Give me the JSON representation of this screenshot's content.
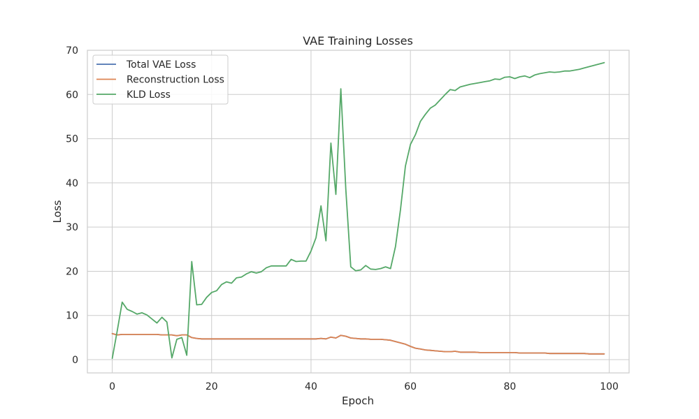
{
  "chart_data": {
    "type": "line",
    "title": "VAE Training Losses",
    "xlabel": "Epoch",
    "ylabel": "Loss",
    "xlim": [
      -5,
      104
    ],
    "ylim": [
      -3,
      70
    ],
    "xticks": [
      0,
      20,
      40,
      60,
      80,
      100
    ],
    "yticks": [
      0,
      10,
      20,
      30,
      40,
      50,
      60,
      70
    ],
    "grid": true,
    "legend": "upper-left",
    "series": [
      {
        "name": "Total VAE Loss",
        "color": "#4c72b0",
        "x": [
          0,
          1,
          2,
          3,
          4,
          5,
          6,
          7,
          8,
          9,
          10,
          11,
          12,
          13,
          14,
          15,
          16,
          17,
          18,
          19,
          20,
          21,
          22,
          23,
          24,
          25,
          26,
          27,
          28,
          29,
          30,
          31,
          32,
          33,
          34,
          35,
          36,
          37,
          38,
          39,
          40,
          41,
          42,
          43,
          44,
          45,
          46,
          47,
          48,
          49,
          50,
          51,
          52,
          53,
          54,
          55,
          56,
          57,
          58,
          59,
          60,
          61,
          62,
          63,
          64,
          65,
          66,
          67,
          68,
          69,
          70,
          71,
          72,
          73,
          74,
          75,
          76,
          77,
          78,
          79,
          80,
          81,
          82,
          83,
          84,
          85,
          86,
          87,
          88,
          89,
          90,
          91,
          92,
          93,
          94,
          95,
          96,
          97,
          98,
          99
        ],
        "values": [
          5.9,
          5.6,
          5.7,
          5.7,
          5.7,
          5.7,
          5.7,
          5.7,
          5.7,
          5.7,
          5.6,
          5.6,
          5.6,
          5.4,
          5.6,
          5.6,
          5.0,
          4.8,
          4.7,
          4.7,
          4.7,
          4.7,
          4.7,
          4.7,
          4.7,
          4.7,
          4.7,
          4.7,
          4.7,
          4.7,
          4.7,
          4.7,
          4.7,
          4.7,
          4.7,
          4.7,
          4.7,
          4.7,
          4.7,
          4.7,
          4.7,
          4.7,
          4.8,
          4.7,
          5.1,
          4.9,
          5.5,
          5.3,
          4.9,
          4.8,
          4.7,
          4.7,
          4.6,
          4.6,
          4.6,
          4.5,
          4.4,
          4.1,
          3.8,
          3.5,
          3.0,
          2.6,
          2.4,
          2.2,
          2.1,
          2.0,
          1.9,
          1.8,
          1.8,
          1.9,
          1.7,
          1.7,
          1.7,
          1.7,
          1.6,
          1.6,
          1.6,
          1.6,
          1.6,
          1.6,
          1.6,
          1.6,
          1.5,
          1.5,
          1.5,
          1.5,
          1.5,
          1.5,
          1.4,
          1.4,
          1.4,
          1.4,
          1.4,
          1.4,
          1.4,
          1.4,
          1.3,
          1.3,
          1.3,
          1.3
        ]
      },
      {
        "name": "Reconstruction Loss",
        "color": "#dd8452",
        "x": [
          0,
          1,
          2,
          3,
          4,
          5,
          6,
          7,
          8,
          9,
          10,
          11,
          12,
          13,
          14,
          15,
          16,
          17,
          18,
          19,
          20,
          21,
          22,
          23,
          24,
          25,
          26,
          27,
          28,
          29,
          30,
          31,
          32,
          33,
          34,
          35,
          36,
          37,
          38,
          39,
          40,
          41,
          42,
          43,
          44,
          45,
          46,
          47,
          48,
          49,
          50,
          51,
          52,
          53,
          54,
          55,
          56,
          57,
          58,
          59,
          60,
          61,
          62,
          63,
          64,
          65,
          66,
          67,
          68,
          69,
          70,
          71,
          72,
          73,
          74,
          75,
          76,
          77,
          78,
          79,
          80,
          81,
          82,
          83,
          84,
          85,
          86,
          87,
          88,
          89,
          90,
          91,
          92,
          93,
          94,
          95,
          96,
          97,
          98,
          99
        ],
        "values": [
          5.9,
          5.6,
          5.7,
          5.7,
          5.7,
          5.7,
          5.7,
          5.7,
          5.7,
          5.7,
          5.6,
          5.6,
          5.6,
          5.4,
          5.6,
          5.6,
          5.0,
          4.8,
          4.7,
          4.7,
          4.7,
          4.7,
          4.7,
          4.7,
          4.7,
          4.7,
          4.7,
          4.7,
          4.7,
          4.7,
          4.7,
          4.7,
          4.7,
          4.7,
          4.7,
          4.7,
          4.7,
          4.7,
          4.7,
          4.7,
          4.7,
          4.7,
          4.8,
          4.7,
          5.1,
          4.9,
          5.5,
          5.3,
          4.9,
          4.8,
          4.7,
          4.7,
          4.6,
          4.6,
          4.6,
          4.5,
          4.4,
          4.1,
          3.8,
          3.5,
          3.0,
          2.6,
          2.4,
          2.2,
          2.1,
          2.0,
          1.9,
          1.8,
          1.8,
          1.9,
          1.7,
          1.7,
          1.7,
          1.7,
          1.6,
          1.6,
          1.6,
          1.6,
          1.6,
          1.6,
          1.6,
          1.6,
          1.5,
          1.5,
          1.5,
          1.5,
          1.5,
          1.5,
          1.4,
          1.4,
          1.4,
          1.4,
          1.4,
          1.4,
          1.4,
          1.4,
          1.3,
          1.3,
          1.3,
          1.3
        ]
      },
      {
        "name": "KLD Loss",
        "color": "#55a868",
        "x": [
          0,
          1,
          2,
          3,
          4,
          5,
          6,
          7,
          8,
          9,
          10,
          11,
          12,
          13,
          14,
          15,
          16,
          17,
          18,
          19,
          20,
          21,
          22,
          23,
          24,
          25,
          26,
          27,
          28,
          29,
          30,
          31,
          32,
          33,
          34,
          35,
          36,
          37,
          38,
          39,
          40,
          41,
          42,
          43,
          44,
          45,
          46,
          47,
          48,
          49,
          50,
          51,
          52,
          53,
          54,
          55,
          56,
          57,
          58,
          59,
          60,
          61,
          62,
          63,
          64,
          65,
          66,
          67,
          68,
          69,
          70,
          71,
          72,
          73,
          74,
          75,
          76,
          77,
          78,
          79,
          80,
          81,
          82,
          83,
          84,
          85,
          86,
          87,
          88,
          89,
          90,
          91,
          92,
          93,
          94,
          95,
          96,
          97,
          98,
          99
        ],
        "values": [
          0.3,
          6.5,
          13.0,
          11.4,
          10.9,
          10.3,
          10.6,
          10.1,
          9.2,
          8.3,
          9.6,
          8.5,
          0.4,
          4.6,
          5.0,
          1.0,
          22.2,
          12.4,
          12.5,
          14.1,
          15.2,
          15.6,
          17.0,
          17.6,
          17.3,
          18.5,
          18.7,
          19.4,
          19.9,
          19.6,
          19.9,
          20.8,
          21.2,
          21.2,
          21.2,
          21.2,
          22.7,
          22.2,
          22.3,
          22.3,
          24.6,
          27.6,
          34.8,
          26.9,
          49.0,
          37.4,
          61.3,
          38.6,
          21.0,
          20.1,
          20.3,
          21.3,
          20.5,
          20.4,
          20.6,
          21.0,
          20.6,
          25.6,
          33.9,
          43.8,
          48.7,
          50.9,
          53.9,
          55.5,
          56.9,
          57.6,
          58.8,
          60.0,
          61.1,
          60.9,
          61.7,
          62.0,
          62.3,
          62.5,
          62.7,
          62.9,
          63.1,
          63.5,
          63.4,
          63.9,
          64.0,
          63.6,
          64.0,
          64.2,
          63.8,
          64.4,
          64.7,
          64.9,
          65.1,
          65.0,
          65.1,
          65.3,
          65.3,
          65.5,
          65.7,
          66.0,
          66.3,
          66.6,
          66.9,
          67.2
        ]
      }
    ]
  }
}
